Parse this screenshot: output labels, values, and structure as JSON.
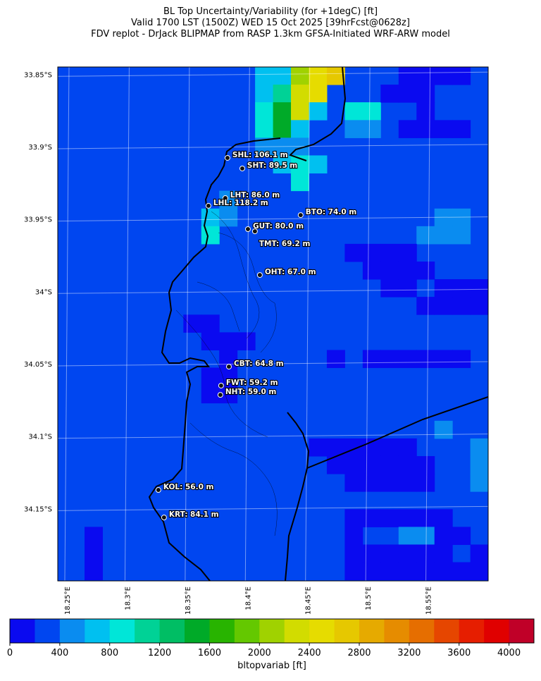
{
  "title_lines": [
    "BL Top Uncertainty/Variability (for +1degC) [ft]",
    "Valid 1700 LST (1500Z) WED 15 Oct 2025 [39hrFcst@0628z]",
    "FDV replot - DrJack BLIPMAP from RASP 1.3km GFSA-Initiated WRF-ARW model"
  ],
  "map": {
    "lonlim": [
      18.2424,
      18.6
    ],
    "latlim": [
      -34.2,
      -33.845
    ],
    "lat_ticks": [
      {
        "value": -33.85,
        "label": "33.85°S"
      },
      {
        "value": -33.9,
        "label": "33.9°S"
      },
      {
        "value": -33.95,
        "label": "33.95°S"
      },
      {
        "value": -34.0,
        "label": "34°S"
      },
      {
        "value": -34.05,
        "label": "34.05°S"
      },
      {
        "value": -34.1,
        "label": "34.1°S"
      },
      {
        "value": -34.15,
        "label": "34.15°S"
      }
    ],
    "lon_ticks": [
      {
        "value": 18.25,
        "label": "18.25°E"
      },
      {
        "value": 18.3,
        "label": "18.3°E"
      },
      {
        "value": 18.35,
        "label": "18.35°E"
      },
      {
        "value": 18.4,
        "label": "18.4°E"
      },
      {
        "value": 18.45,
        "label": "18.45°E"
      },
      {
        "value": 18.5,
        "label": "18.5°E"
      },
      {
        "value": 18.55,
        "label": "18.55°E"
      }
    ],
    "background_value": 300,
    "cell_size": [
      0.0149,
      0.01222
    ],
    "cells": [
      [
        18.4138,
        -33.8511,
        700
      ],
      [
        18.4138,
        -33.8633,
        700
      ],
      [
        18.4138,
        -33.8755,
        900
      ],
      [
        18.4138,
        -33.8878,
        900
      ],
      [
        18.4138,
        -33.9,
        500
      ],
      [
        18.4287,
        -33.8511,
        700
      ],
      [
        18.4287,
        -33.8633,
        1100
      ],
      [
        18.4287,
        -33.8755,
        1500
      ],
      [
        18.4287,
        -33.8878,
        1500
      ],
      [
        18.4287,
        -33.9,
        500
      ],
      [
        18.4287,
        -33.9122,
        700
      ],
      [
        18.4436,
        -33.8511,
        2100
      ],
      [
        18.4436,
        -33.8633,
        2300
      ],
      [
        18.4436,
        -33.8755,
        2300
      ],
      [
        18.4436,
        -33.8878,
        700
      ],
      [
        18.4436,
        -33.9,
        500
      ],
      [
        18.4436,
        -33.9122,
        900
      ],
      [
        18.4436,
        -33.9244,
        900
      ],
      [
        18.4585,
        -33.8511,
        2500
      ],
      [
        18.4585,
        -33.8633,
        2500
      ],
      [
        18.4585,
        -33.8755,
        700
      ],
      [
        18.4585,
        -33.9122,
        700
      ],
      [
        18.4734,
        -33.8511,
        2700
      ],
      [
        18.4883,
        -33.8755,
        900
      ],
      [
        18.4883,
        -33.8878,
        500
      ],
      [
        18.5032,
        -33.8755,
        900
      ],
      [
        18.5032,
        -33.8878,
        500
      ],
      [
        18.3691,
        -33.9489,
        700
      ],
      [
        18.3691,
        -33.9611,
        900
      ],
      [
        18.384,
        -33.9489,
        500
      ],
      [
        18.384,
        -33.9366,
        500
      ],
      [
        18.5181,
        -33.8633,
        100
      ],
      [
        18.533,
        -33.8511,
        100
      ],
      [
        18.533,
        -33.8633,
        100
      ],
      [
        18.5479,
        -33.8511,
        100
      ],
      [
        18.5479,
        -33.8633,
        100
      ],
      [
        18.5479,
        -33.8755,
        100
      ],
      [
        18.5628,
        -33.8511,
        100
      ],
      [
        18.5777,
        -33.8511,
        100
      ],
      [
        18.533,
        -33.8878,
        100
      ],
      [
        18.5479,
        -33.8878,
        100
      ],
      [
        18.5628,
        -33.8878,
        100
      ],
      [
        18.5777,
        -33.8878,
        100
      ],
      [
        18.5628,
        -33.9489,
        500
      ],
      [
        18.5777,
        -33.9489,
        500
      ],
      [
        18.5479,
        -33.9611,
        500
      ],
      [
        18.5628,
        -33.9611,
        500
      ],
      [
        18.5777,
        -33.9611,
        500
      ],
      [
        18.4883,
        -33.9733,
        100
      ],
      [
        18.5032,
        -33.9733,
        100
      ],
      [
        18.5181,
        -33.9733,
        100
      ],
      [
        18.533,
        -33.9733,
        100
      ],
      [
        18.5032,
        -33.9855,
        100
      ],
      [
        18.5181,
        -33.9855,
        100
      ],
      [
        18.533,
        -33.9855,
        100
      ],
      [
        18.5479,
        -33.9855,
        100
      ],
      [
        18.5181,
        -33.9977,
        100
      ],
      [
        18.533,
        -33.9977,
        100
      ],
      [
        18.5628,
        -33.9977,
        100
      ],
      [
        18.5777,
        -33.9977,
        100
      ],
      [
        18.5926,
        -33.9977,
        100
      ],
      [
        18.5479,
        -34.0099,
        100
      ],
      [
        18.5628,
        -34.0099,
        100
      ],
      [
        18.5777,
        -34.0099,
        100
      ],
      [
        18.5926,
        -34.0099,
        100
      ],
      [
        18.3542,
        -34.0222,
        100
      ],
      [
        18.3691,
        -34.0222,
        100
      ],
      [
        18.3691,
        -34.0344,
        100
      ],
      [
        18.384,
        -34.0344,
        100
      ],
      [
        18.3989,
        -34.0344,
        100
      ],
      [
        18.384,
        -34.0466,
        100
      ],
      [
        18.4734,
        -34.0466,
        100
      ],
      [
        18.3691,
        -34.0588,
        100
      ],
      [
        18.384,
        -34.0588,
        100
      ],
      [
        18.3691,
        -34.071,
        100
      ],
      [
        18.384,
        -34.071,
        100
      ],
      [
        18.5032,
        -34.0466,
        100
      ],
      [
        18.5181,
        -34.0466,
        100
      ],
      [
        18.533,
        -34.0466,
        100
      ],
      [
        18.5479,
        -34.0466,
        100
      ],
      [
        18.5628,
        -34.0466,
        100
      ],
      [
        18.5777,
        -34.0466,
        100
      ],
      [
        18.5628,
        -34.0955,
        500
      ],
      [
        18.5926,
        -34.1077,
        500
      ],
      [
        18.5926,
        -34.1199,
        500
      ],
      [
        18.5926,
        -34.1321,
        500
      ],
      [
        18.4585,
        -34.1077,
        100
      ],
      [
        18.4734,
        -34.1077,
        100
      ],
      [
        18.4883,
        -34.1077,
        100
      ],
      [
        18.5032,
        -34.1077,
        100
      ],
      [
        18.5181,
        -34.1077,
        100
      ],
      [
        18.533,
        -34.1077,
        100
      ],
      [
        18.4734,
        -34.1199,
        100
      ],
      [
        18.4883,
        -34.1199,
        100
      ],
      [
        18.5032,
        -34.1199,
        100
      ],
      [
        18.5181,
        -34.1199,
        100
      ],
      [
        18.533,
        -34.1199,
        100
      ],
      [
        18.5479,
        -34.1199,
        100
      ],
      [
        18.4883,
        -34.1321,
        100
      ],
      [
        18.5032,
        -34.1321,
        100
      ],
      [
        18.5181,
        -34.1321,
        100
      ],
      [
        18.533,
        -34.1321,
        100
      ],
      [
        18.5479,
        -34.1321,
        100
      ],
      [
        18.4883,
        -34.1566,
        100
      ],
      [
        18.5032,
        -34.1566,
        100
      ],
      [
        18.5181,
        -34.1566,
        100
      ],
      [
        18.533,
        -34.1566,
        100
      ],
      [
        18.5479,
        -34.1566,
        100
      ],
      [
        18.5628,
        -34.1566,
        100
      ],
      [
        18.4883,
        -34.1688,
        100
      ],
      [
        18.533,
        -34.1688,
        500
      ],
      [
        18.5479,
        -34.1688,
        500
      ],
      [
        18.5628,
        -34.1688,
        100
      ],
      [
        18.5777,
        -34.1688,
        100
      ],
      [
        18.4883,
        -34.181,
        100
      ],
      [
        18.5032,
        -34.181,
        100
      ],
      [
        18.5181,
        -34.181,
        100
      ],
      [
        18.533,
        -34.181,
        100
      ],
      [
        18.5479,
        -34.181,
        100
      ],
      [
        18.5628,
        -34.181,
        100
      ],
      [
        18.5926,
        -34.181,
        100
      ],
      [
        18.4883,
        -34.1932,
        100
      ],
      [
        18.5032,
        -34.1932,
        100
      ],
      [
        18.5181,
        -34.1932,
        100
      ],
      [
        18.533,
        -34.1932,
        100
      ],
      [
        18.5479,
        -34.1932,
        100
      ],
      [
        18.5628,
        -34.1932,
        100
      ],
      [
        18.5777,
        -34.1932,
        100
      ],
      [
        18.5926,
        -34.1932,
        100
      ],
      [
        18.2721,
        -34.1688,
        100
      ],
      [
        18.2721,
        -34.181,
        100
      ],
      [
        18.2721,
        -34.1932,
        100
      ]
    ],
    "stations": [
      {
        "label": "SHL: 106.1 m",
        "value": 106.1,
        "lon": 18.3834,
        "lat": -33.9078
      },
      {
        "label": "SHT: 89.5 m",
        "value": 89.5,
        "lon": 18.3957,
        "lat": -33.9151
      },
      {
        "label": "LHT: 86.0 m",
        "value": 86.0,
        "lon": 18.3816,
        "lat": -33.9356
      },
      {
        "label": "LHL: 118.2 m",
        "value": 118.2,
        "lon": 18.3676,
        "lat": -33.9409
      },
      {
        "label": "BTO: 74.0 m",
        "value": 74.0,
        "lon": 18.4442,
        "lat": -33.9473
      },
      {
        "label": "GUT: 80.0 m",
        "value": 80.0,
        "lon": 18.4004,
        "lat": -33.957
      },
      {
        "label": "TMT: 69.2 m",
        "value": 69.2,
        "lon": 18.4062,
        "lat": -33.9585
      },
      {
        "label": "OHT: 67.0 m",
        "value": 67.0,
        "lon": 18.4103,
        "lat": -33.9887
      },
      {
        "label": "CBT: 64.8 m",
        "value": 64.8,
        "lon": 18.3846,
        "lat": -34.052
      },
      {
        "label": "FWT: 59.2 m",
        "value": 59.2,
        "lon": 18.3781,
        "lat": -34.0651
      },
      {
        "label": "NHT: 59.0 m",
        "value": 59.0,
        "lon": 18.3775,
        "lat": -34.0715
      },
      {
        "label": "KOL: 56.0 m",
        "value": 56.0,
        "lon": 18.326,
        "lat": -34.1372
      },
      {
        "label": "KRT: 84.1 m",
        "value": 84.1,
        "lon": 18.3307,
        "lat": -34.1562
      }
    ]
  },
  "colorbar": {
    "label": "bltopvariab [ft]",
    "lim": [
      0,
      4200
    ],
    "levels": [
      0,
      200,
      400,
      600,
      800,
      1000,
      1200,
      1400,
      1600,
      1800,
      2000,
      2200,
      2400,
      2600,
      2800,
      3000,
      3200,
      3400,
      3600,
      3800,
      4000,
      4200
    ],
    "colors": [
      "#0a0af0",
      "#0046f0",
      "#0a8cf0",
      "#00c0f0",
      "#00e6d8",
      "#00d296",
      "#00be64",
      "#00aa28",
      "#28b400",
      "#64c800",
      "#a0d200",
      "#d2dc00",
      "#e6dc00",
      "#e6c800",
      "#e6aa00",
      "#e68c00",
      "#e66e00",
      "#e64600",
      "#e61e00",
      "#e00000",
      "#c00028"
    ],
    "ticks": [
      0,
      400,
      800,
      1200,
      1600,
      2000,
      2400,
      2800,
      3200,
      3600,
      4000
    ]
  }
}
